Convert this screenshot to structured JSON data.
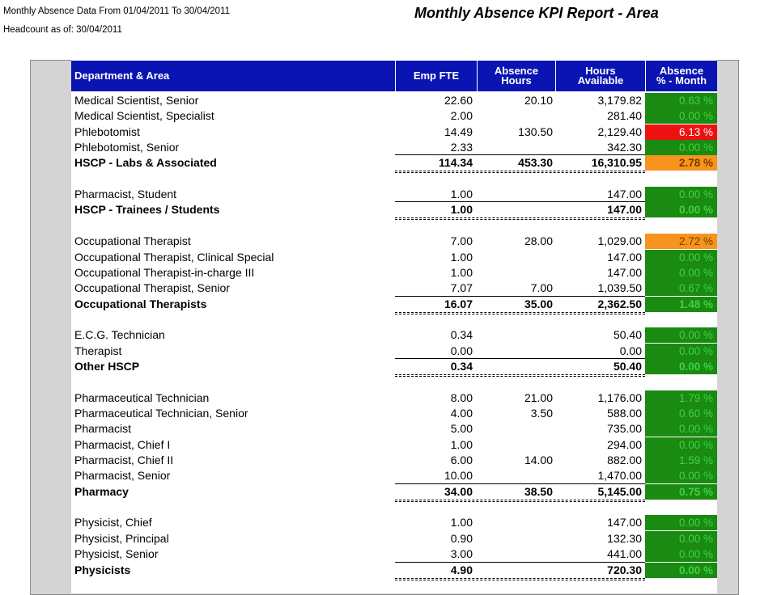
{
  "header": {
    "period": "Monthly Absence Data From 01/04/2011 To 30/04/2011",
    "headcount": "Headcount as of: 30/04/2011",
    "title": "Monthly Absence KPI Report - Area"
  },
  "columns": {
    "dept": "Department & Area",
    "fte": "Emp FTE",
    "abs_hours": "Absence\nHours",
    "hours_avail": "Hours\nAvailable",
    "abs_pct": "Absence\n% - Month"
  },
  "colors": {
    "green": "#1a8a12",
    "red": "#ee1111",
    "orange": "#f7941d",
    "header_blue": "#0a14b3",
    "pct_text_green": "#3ed43e"
  },
  "rows": [
    {
      "name": "Medical Scientist, Senior",
      "fte": "22.60",
      "abs": "20.10",
      "avail": "3,179.82",
      "pct": "0.63 %",
      "status": "green"
    },
    {
      "name": "Medical Scientist, Specialist",
      "fte": "2.00",
      "abs": "",
      "avail": "281.40",
      "pct": "0.00 %",
      "status": "green"
    },
    {
      "name": "Phlebotomist",
      "fte": "14.49",
      "abs": "130.50",
      "avail": "2,129.40",
      "pct": "6.13 %",
      "status": "red"
    },
    {
      "name": "Phlebotomist, Senior",
      "fte": "2.33",
      "abs": "",
      "avail": "342.30",
      "pct": "0.00 %",
      "status": "green"
    },
    {
      "name": "HSCP - Labs & Associated",
      "fte": "114.34",
      "abs": "453.30",
      "avail": "16,310.95",
      "pct": "2.78 %",
      "status": "orange",
      "total": true
    },
    {
      "blank": true
    },
    {
      "name": "Pharmacist, Student",
      "fte": "1.00",
      "abs": "",
      "avail": "147.00",
      "pct": "0.00 %",
      "status": "green"
    },
    {
      "name": "HSCP - Trainees / Students",
      "fte": "1.00",
      "abs": "",
      "avail": "147.00",
      "pct": "0.00 %",
      "status": "green",
      "total": true
    },
    {
      "blank": true
    },
    {
      "name": "Occupational Therapist",
      "fte": "7.00",
      "abs": "28.00",
      "avail": "1,029.00",
      "pct": "2.72 %",
      "status": "orange"
    },
    {
      "name": "Occupational Therapist, Clinical Special",
      "fte": "1.00",
      "abs": "",
      "avail": "147.00",
      "pct": "0.00 %",
      "status": "green"
    },
    {
      "name": "Occupational Therapist-in-charge III",
      "fte": "1.00",
      "abs": "",
      "avail": "147.00",
      "pct": "0.00 %",
      "status": "green"
    },
    {
      "name": "Occupational Therapist, Senior",
      "fte": "7.07",
      "abs": "7.00",
      "avail": "1,039.50",
      "pct": "0.67 %",
      "status": "green"
    },
    {
      "name": "Occupational Therapists",
      "fte": "16.07",
      "abs": "35.00",
      "avail": "2,362.50",
      "pct": "1.48 %",
      "status": "green",
      "total": true
    },
    {
      "blank": true
    },
    {
      "name": "E.C.G. Technician",
      "fte": "0.34",
      "abs": "",
      "avail": "50.40",
      "pct": "0.00 %",
      "status": "green"
    },
    {
      "name": "Therapist",
      "fte": "0.00",
      "abs": "",
      "avail": "0.00",
      "pct": "0.00 %",
      "status": "green"
    },
    {
      "name": "Other HSCP",
      "fte": "0.34",
      "abs": "",
      "avail": "50.40",
      "pct": "0.00 %",
      "status": "green",
      "total": true
    },
    {
      "blank": true
    },
    {
      "name": "Pharmaceutical Technician",
      "fte": "8.00",
      "abs": "21.00",
      "avail": "1,176.00",
      "pct": "1.79 %",
      "status": "green"
    },
    {
      "name": "Pharmaceutical Technician, Senior",
      "fte": "4.00",
      "abs": "3.50",
      "avail": "588.00",
      "pct": "0.60 %",
      "status": "green"
    },
    {
      "name": "Pharmacist",
      "fte": "5.00",
      "abs": "",
      "avail": "735.00",
      "pct": "0.00 %",
      "status": "green"
    },
    {
      "name": "Pharmacist, Chief I",
      "fte": "1.00",
      "abs": "",
      "avail": "294.00",
      "pct": "0.00 %",
      "status": "green"
    },
    {
      "name": "Pharmacist, Chief II",
      "fte": "6.00",
      "abs": "14.00",
      "avail": "882.00",
      "pct": "1.59 %",
      "status": "green"
    },
    {
      "name": "Pharmacist, Senior",
      "fte": "10.00",
      "abs": "",
      "avail": "1,470.00",
      "pct": "0.00 %",
      "status": "green"
    },
    {
      "name": "Pharmacy",
      "fte": "34.00",
      "abs": "38.50",
      "avail": "5,145.00",
      "pct": "0.75 %",
      "status": "green",
      "total": true
    },
    {
      "blank": true
    },
    {
      "name": "Physicist, Chief",
      "fte": "1.00",
      "abs": "",
      "avail": "147.00",
      "pct": "0.00 %",
      "status": "green"
    },
    {
      "name": "Physicist, Principal",
      "fte": "0.90",
      "abs": "",
      "avail": "132.30",
      "pct": "0.00 %",
      "status": "green"
    },
    {
      "name": "Physicist, Senior",
      "fte": "3.00",
      "abs": "",
      "avail": "441.00",
      "pct": "0.00 %",
      "status": "green"
    },
    {
      "name": "Physicists",
      "fte": "4.90",
      "abs": "",
      "avail": "720.30",
      "pct": "0.00 %",
      "status": "green",
      "total": true
    }
  ]
}
